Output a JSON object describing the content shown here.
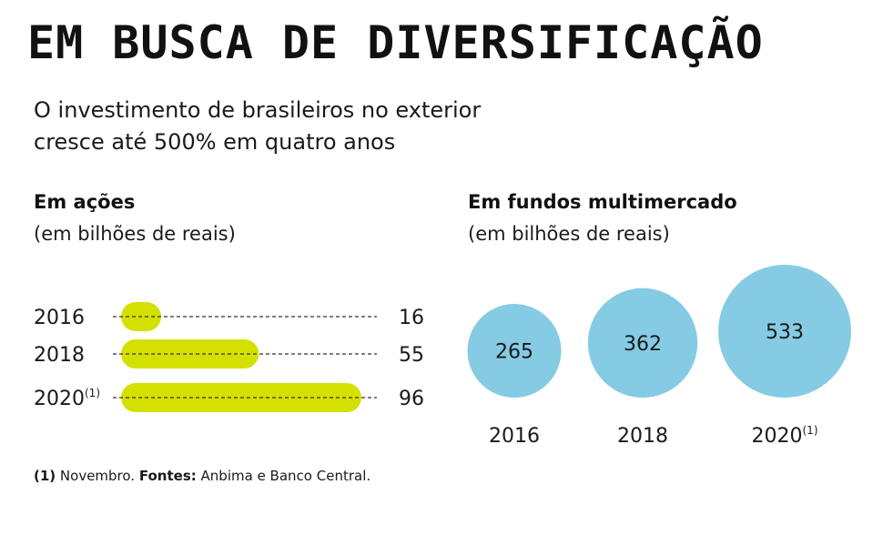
{
  "header": {
    "title": "EM BUSCA DE DIVERSIFICAÇÃO",
    "subtitle_line1": "O investimento de brasileiros no exterior",
    "subtitle_line2": "cresce até 500% em quatro anos"
  },
  "chart_data": [
    {
      "type": "bar",
      "title": "Em ações",
      "subtitle": "(em bilhões de reais)",
      "categories": [
        "2016",
        "2018",
        "2020"
      ],
      "category_notes": [
        "",
        "",
        "(1)"
      ],
      "values": [
        16,
        55,
        96
      ],
      "xlim": [
        0,
        100
      ],
      "grid": false,
      "bar_color": "#d4e000",
      "leader_style": "dashed"
    },
    {
      "type": "bubble",
      "title": "Em fundos multimercado",
      "subtitle": "(em bilhões de reais)",
      "categories": [
        "2016",
        "2018",
        "2020"
      ],
      "category_notes": [
        "",
        "",
        "(1)"
      ],
      "values": [
        265,
        362,
        533
      ],
      "bubble_color": "#85cbe3"
    }
  ],
  "footnote": {
    "note_marker": "(1)",
    "note_text": " Novembro. ",
    "sources_label": "Fontes:",
    "sources_text": " Anbima e Banco Central."
  },
  "colors": {
    "bar": "#d4e000",
    "bubble": "#85cbe3",
    "text": "#1a1a1a"
  }
}
